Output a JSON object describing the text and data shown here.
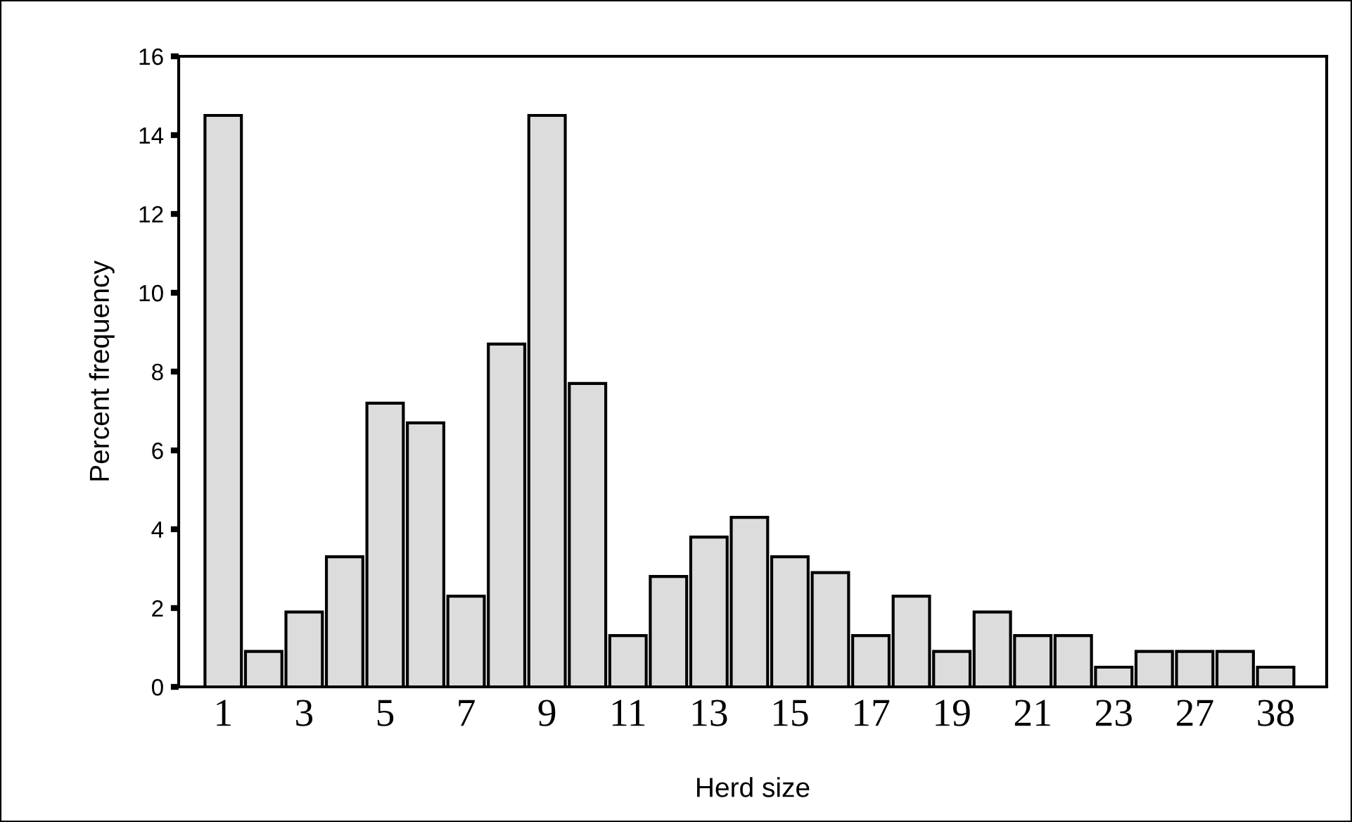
{
  "chart_data": {
    "type": "bar",
    "xlabel": "Herd size",
    "ylabel": "Percent frequency",
    "categories": [
      "1",
      null,
      "3",
      null,
      "5",
      null,
      "7",
      null,
      "9",
      null,
      "11",
      null,
      "13",
      null,
      "15",
      null,
      "17",
      null,
      "19",
      null,
      "21",
      null,
      "23",
      null,
      "27",
      null,
      "38"
    ],
    "values": [
      14.5,
      0.9,
      1.9,
      3.3,
      7.2,
      6.7,
      2.3,
      8.7,
      14.5,
      7.7,
      1.3,
      2.8,
      3.8,
      4.3,
      3.3,
      2.9,
      1.3,
      2.3,
      0.9,
      1.9,
      1.3,
      1.3,
      0.5,
      0.9,
      0.9,
      0.9,
      0.5
    ],
    "color": "#dcdcdc",
    "ylim": [
      0,
      16
    ],
    "yticks": [
      0,
      2,
      4,
      6,
      8,
      10,
      12,
      14,
      16
    ],
    "grid": false
  }
}
